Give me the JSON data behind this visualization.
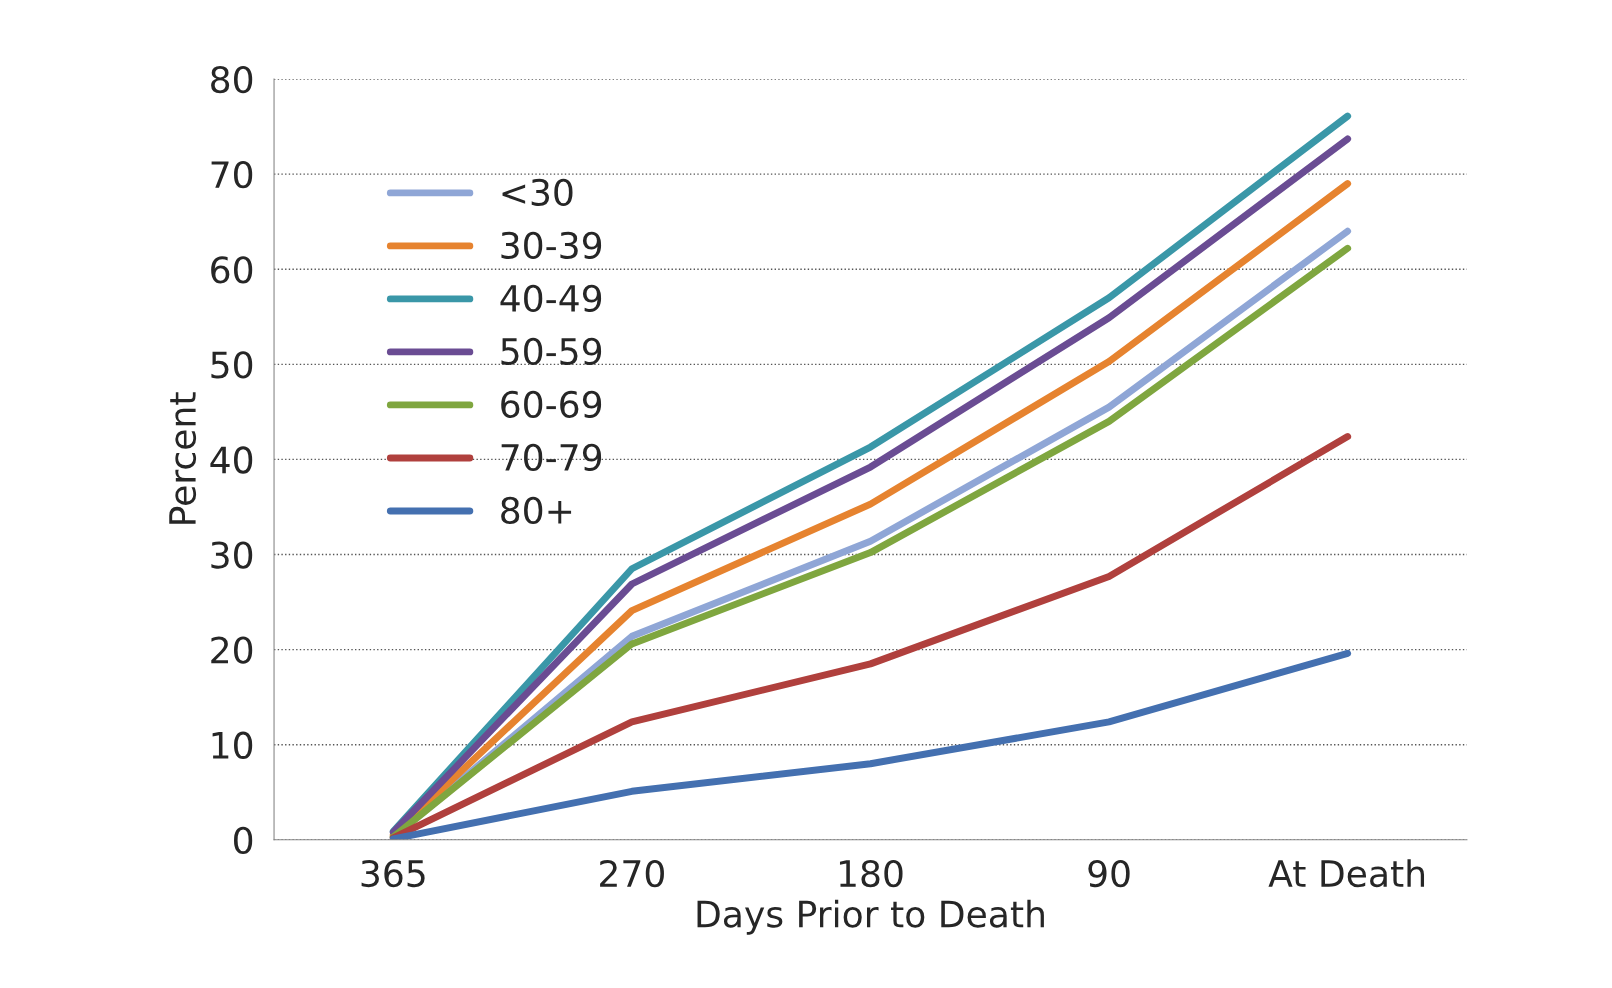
{
  "chart_data": {
    "type": "line",
    "xlabel": "Days Prior to Death",
    "ylabel": "Percent",
    "categories": [
      "365",
      "270",
      "180",
      "90",
      "At Death"
    ],
    "ylim": [
      0,
      80
    ],
    "yticks": [
      0,
      10,
      20,
      30,
      40,
      50,
      60,
      70,
      80
    ],
    "grid": "y",
    "legend": "top left",
    "marker": "none",
    "line_style": "solid",
    "series": [
      {
        "name": "<30",
        "color": "#8fa6d6",
        "values": [
          0.3,
          21.4,
          31.4,
          45.5,
          64
        ]
      },
      {
        "name": "30-39",
        "color": "#e6832f",
        "values": [
          0.5,
          24.1,
          35.3,
          50.3,
          69
        ]
      },
      {
        "name": "40-49",
        "color": "#3a97a8",
        "values": [
          0.9,
          28.5,
          41.3,
          57,
          76.1
        ]
      },
      {
        "name": "50-59",
        "color": "#6a4c93",
        "values": [
          0.8,
          26.9,
          39.2,
          54.9,
          73.7
        ]
      },
      {
        "name": "60-69",
        "color": "#7fa63f",
        "values": [
          0.3,
          20.6,
          30.2,
          44,
          62.2
        ]
      },
      {
        "name": "70-79",
        "color": "#b0403d",
        "values": [
          0.2,
          12.4,
          18.5,
          27.7,
          42.4
        ]
      },
      {
        "name": "80+",
        "color": "#4470b0",
        "values": [
          0.1,
          5.1,
          8,
          12.4,
          19.6
        ]
      }
    ]
  }
}
